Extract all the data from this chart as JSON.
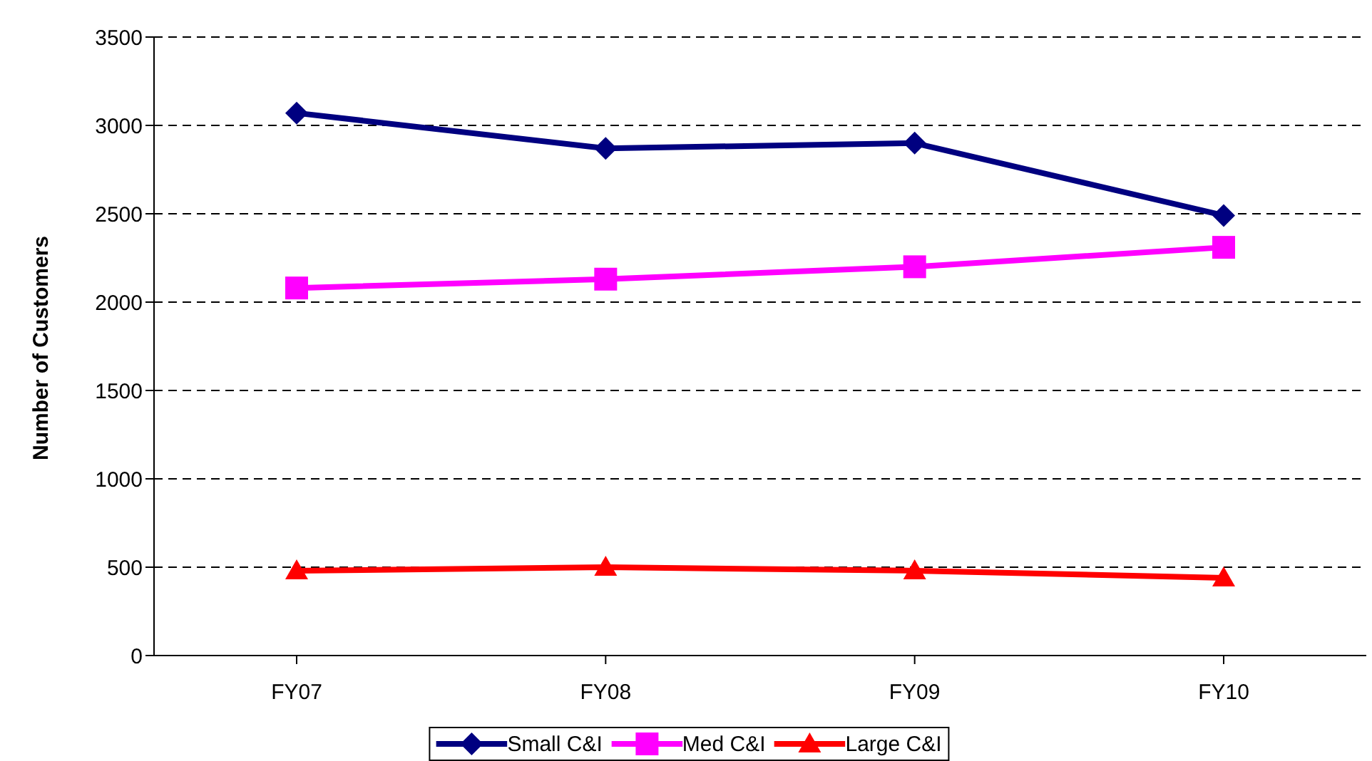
{
  "chart_data": {
    "type": "line",
    "ylabel": "Number of Customers",
    "categories": [
      "FY07",
      "FY08",
      "FY09",
      "FY10"
    ],
    "series": [
      {
        "name": "Small C&I",
        "color": "#000080",
        "marker": "diamond",
        "values": [
          3070,
          2870,
          2900,
          2490
        ]
      },
      {
        "name": "Med C&I",
        "color": "#ff00ff",
        "marker": "square",
        "values": [
          2080,
          2130,
          2200,
          2310
        ]
      },
      {
        "name": "Large C&I",
        "color": "#ff0000",
        "marker": "triangle",
        "values": [
          480,
          500,
          480,
          440
        ]
      }
    ],
    "ylim": [
      0,
      3500
    ],
    "yticks": [
      0,
      500,
      1000,
      1500,
      2000,
      2500,
      3000,
      3500
    ],
    "grid": "y",
    "legend": "bottom"
  }
}
